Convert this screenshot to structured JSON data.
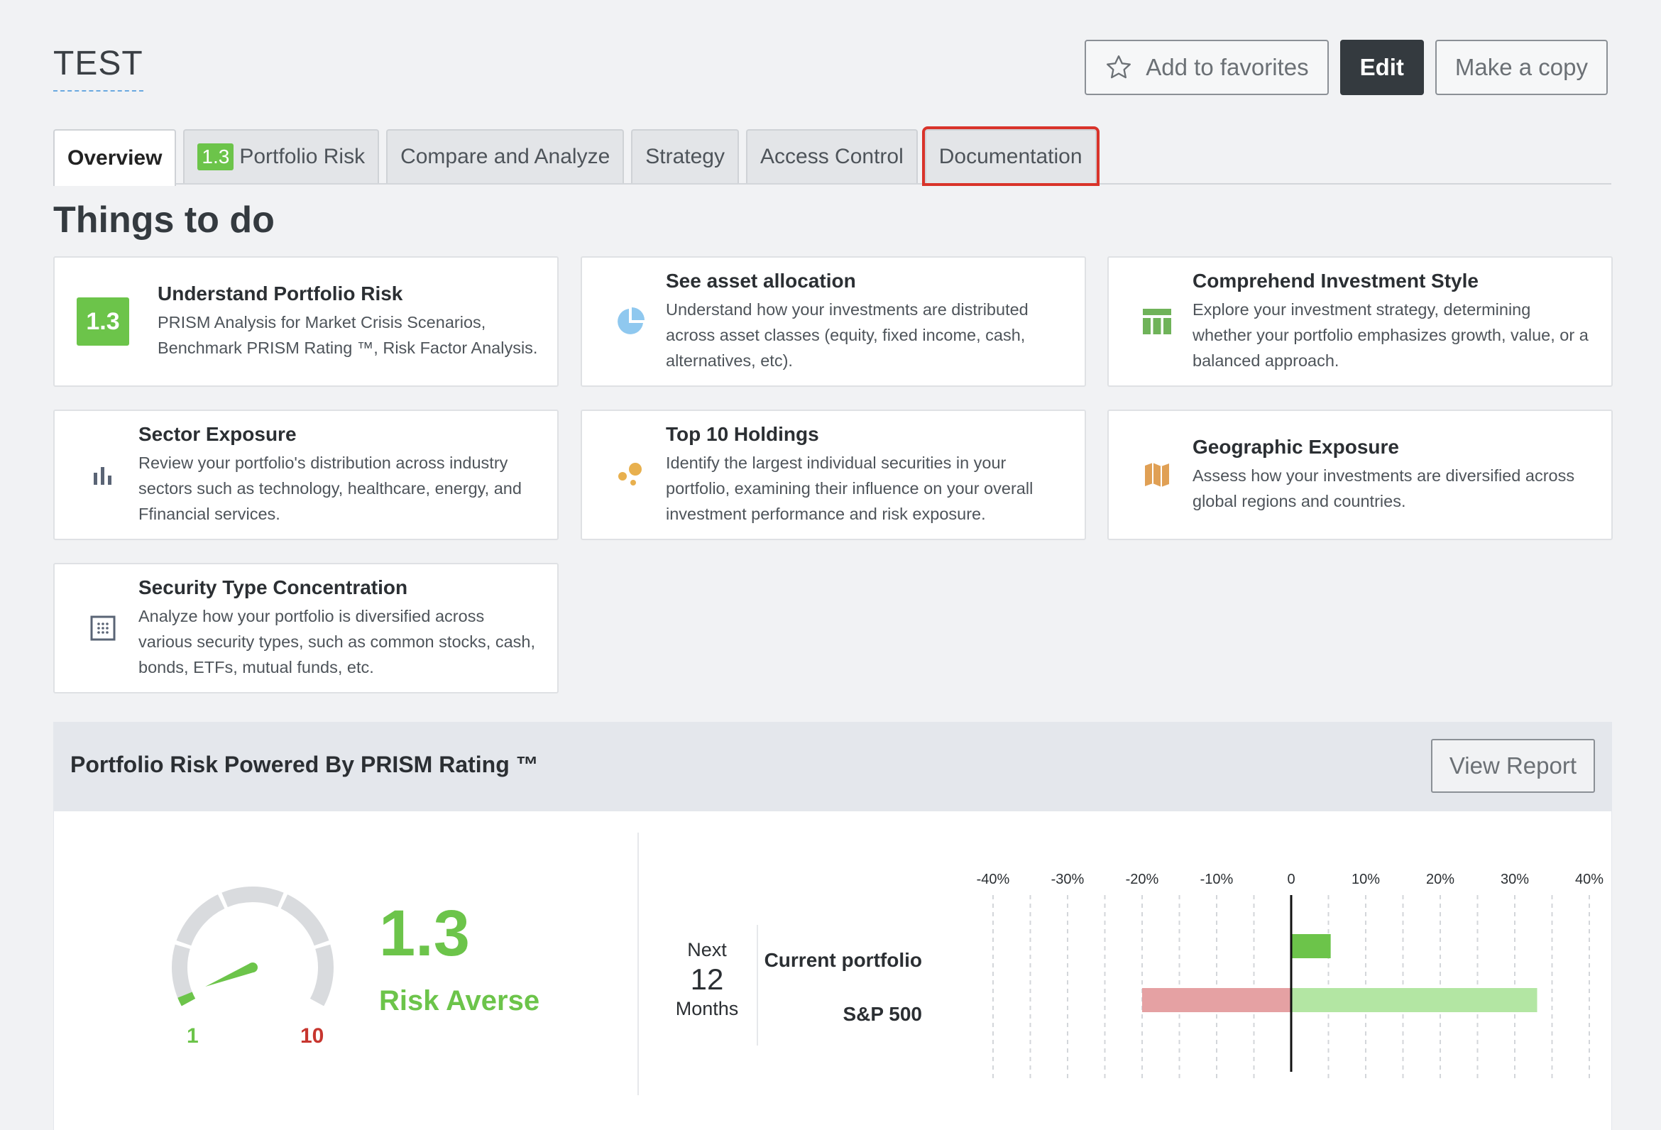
{
  "header": {
    "title": "TEST",
    "add_favorites_label": "Add to favorites",
    "edit_label": "Edit",
    "copy_label": "Make a copy"
  },
  "tabs": [
    {
      "label": "Overview",
      "active": true
    },
    {
      "label": "Portfolio Risk",
      "badge": "1.3"
    },
    {
      "label": "Compare and Analyze"
    },
    {
      "label": "Strategy"
    },
    {
      "label": "Access Control"
    },
    {
      "label": "Documentation",
      "highlighted": true
    }
  ],
  "things_to_do": {
    "title": "Things to do",
    "cards": [
      {
        "title": "Understand Portfolio Risk",
        "desc": "PRISM Analysis for Market Crisis Scenarios, Benchmark PRISM Rating ™, Risk Factor Analysis.",
        "icon": "rating-badge-icon",
        "badge": "1.3"
      },
      {
        "title": "See asset allocation",
        "desc": "Understand how your investments are distributed across asset classes (equity, fixed income, cash, alternatives, etc).",
        "icon": "pie-chart-icon"
      },
      {
        "title": "Comprehend Investment Style",
        "desc": "Explore your investment strategy, determining whether your portfolio emphasizes growth, value, or a balanced approach.",
        "icon": "table-grid-icon"
      },
      {
        "title": "Sector Exposure",
        "desc": "Review your portfolio's distribution across industry sectors such as technology, healthcare, energy, and Ffinancial services.",
        "icon": "bar-chart-icon"
      },
      {
        "title": "Top 10 Holdings",
        "desc": "Identify the largest individual securities in your portfolio, examining their influence on your overall investment performance and risk exposure.",
        "icon": "bubbles-icon"
      },
      {
        "title": "Geographic Exposure",
        "desc": "Assess how your investments are diversified across global regions and countries.",
        "icon": "map-icon"
      },
      {
        "title": "Security Type Concentration",
        "desc": "Analyze how your portfolio is diversified across various security types, such as common stocks, cash, bonds, ETFs, mutual funds, etc.",
        "icon": "dotted-square-icon"
      }
    ]
  },
  "risk_panel": {
    "title": "Portfolio Risk Powered By PRISM Rating ™",
    "view_report_label": "View Report",
    "rating": "1.3",
    "rating_label": "Risk Averse",
    "gauge_min": "1",
    "gauge_max": "10",
    "gauge_value": 1.3,
    "horizon": {
      "line1": "Next",
      "line2": "12",
      "line3": "Months"
    }
  },
  "chart_data": {
    "type": "bar",
    "orientation": "horizontal",
    "x_ticks": [
      "-40%",
      "-30%",
      "-20%",
      "-10%",
      "0",
      "10%",
      "20%",
      "30%",
      "40%"
    ],
    "xlim": [
      -40,
      40
    ],
    "categories": [
      "Current portfolio",
      "S&P 500"
    ],
    "ranges": [
      {
        "name": "Current portfolio",
        "low": 0,
        "high": 5.3
      },
      {
        "name": "S&P 500",
        "low": -20,
        "high": 33
      }
    ],
    "colors": {
      "positive": "#6cc44a",
      "negative": "#e5a1a3",
      "positive_light": "#b3e6a3"
    }
  }
}
